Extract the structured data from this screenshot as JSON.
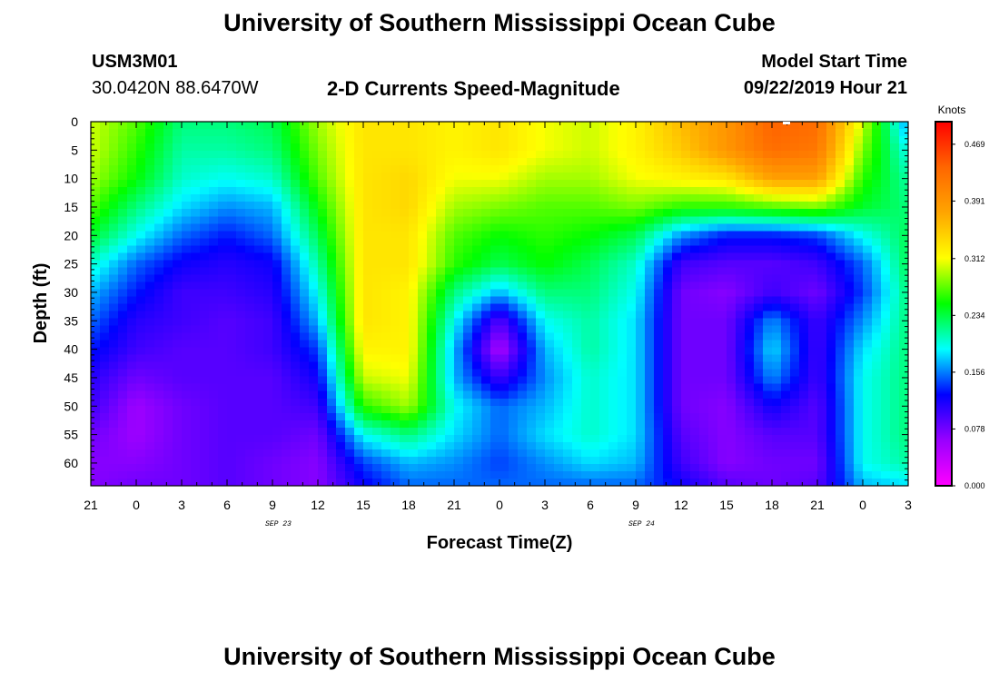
{
  "page": {
    "title_top": "University of Southern Mississippi Ocean Cube",
    "title_bottom": "University of Southern Mississippi Ocean Cube",
    "station_id": "USM3M01",
    "station_coords": "30.0420N 88.6470W",
    "plot_title": "2-D Currents Speed-Magnitude",
    "model_start_label": "Model Start Time",
    "model_start_value": "09/22/2019 Hour 21"
  },
  "colors": {
    "scale": [
      "#ff00ff",
      "#9900ff",
      "#0000ff",
      "#00ffff",
      "#00ff00",
      "#ffff00",
      "#ffa500",
      "#ff6600",
      "#ff0000"
    ]
  },
  "chart_data": {
    "type": "heatmap",
    "xlabel": "Forecast Time(Z)",
    "ylabel": "Depth (ft)",
    "colorbar_label": "Knots",
    "colorbar_ticks": [
      0.0,
      0.078,
      0.156,
      0.234,
      0.312,
      0.391,
      0.469
    ],
    "value_range": [
      0.0,
      0.5
    ],
    "x_tick_labels": [
      "21",
      "0",
      "3",
      "6",
      "9",
      "12",
      "15",
      "18",
      "21",
      "0",
      "3",
      "6",
      "9",
      "12",
      "15",
      "18",
      "21",
      "0",
      "3"
    ],
    "x_hours_from_start": [
      0,
      3,
      6,
      9,
      12,
      15,
      18,
      21,
      24,
      27,
      30,
      33,
      36,
      39,
      42,
      45,
      48,
      51,
      54
    ],
    "date_labels": [
      {
        "text": "SEP 23",
        "at_hour": 15
      },
      {
        "text": "SEP 24",
        "at_hour": 39
      }
    ],
    "y_ticks": [
      0,
      5,
      10,
      15,
      20,
      25,
      30,
      35,
      40,
      45,
      50,
      55,
      60
    ],
    "ylim": [
      0,
      64
    ],
    "x_hours": [
      0,
      3,
      6,
      9,
      12,
      15,
      18,
      21,
      24,
      27,
      30,
      33,
      36,
      39,
      42,
      45,
      48,
      51,
      54
    ],
    "depths_ft": [
      0,
      5,
      10,
      15,
      20,
      25,
      30,
      35,
      40,
      45,
      50,
      55,
      60,
      64
    ],
    "values_knots": [
      [
        0.3,
        0.27,
        0.22,
        0.22,
        0.23,
        0.29,
        0.33,
        0.33,
        0.32,
        0.33,
        0.31,
        0.3,
        0.32,
        0.36,
        0.39,
        0.44,
        0.43,
        0.3,
        0.16
      ],
      [
        0.3,
        0.26,
        0.21,
        0.21,
        0.22,
        0.28,
        0.33,
        0.33,
        0.32,
        0.33,
        0.31,
        0.3,
        0.32,
        0.35,
        0.39,
        0.43,
        0.42,
        0.28,
        0.19
      ],
      [
        0.29,
        0.25,
        0.2,
        0.19,
        0.2,
        0.27,
        0.33,
        0.34,
        0.31,
        0.31,
        0.29,
        0.29,
        0.31,
        0.32,
        0.33,
        0.38,
        0.38,
        0.26,
        0.21
      ],
      [
        0.27,
        0.22,
        0.18,
        0.16,
        0.17,
        0.25,
        0.33,
        0.34,
        0.29,
        0.28,
        0.27,
        0.27,
        0.28,
        0.26,
        0.26,
        0.27,
        0.28,
        0.24,
        0.22
      ],
      [
        0.24,
        0.19,
        0.15,
        0.13,
        0.15,
        0.23,
        0.33,
        0.33,
        0.27,
        0.25,
        0.26,
        0.25,
        0.23,
        0.16,
        0.13,
        0.13,
        0.14,
        0.19,
        0.23
      ],
      [
        0.2,
        0.15,
        0.12,
        0.11,
        0.12,
        0.21,
        0.33,
        0.33,
        0.26,
        0.23,
        0.25,
        0.23,
        0.2,
        0.1,
        0.09,
        0.09,
        0.1,
        0.15,
        0.23
      ],
      [
        0.17,
        0.13,
        0.1,
        0.1,
        0.11,
        0.19,
        0.33,
        0.32,
        0.22,
        0.17,
        0.22,
        0.22,
        0.19,
        0.08,
        0.07,
        0.1,
        0.08,
        0.14,
        0.22
      ],
      [
        0.15,
        0.11,
        0.1,
        0.09,
        0.1,
        0.17,
        0.33,
        0.32,
        0.19,
        0.09,
        0.19,
        0.21,
        0.18,
        0.08,
        0.08,
        0.16,
        0.1,
        0.16,
        0.22
      ],
      [
        0.13,
        0.1,
        0.09,
        0.09,
        0.1,
        0.14,
        0.32,
        0.32,
        0.17,
        0.05,
        0.17,
        0.21,
        0.18,
        0.08,
        0.08,
        0.18,
        0.1,
        0.18,
        0.22
      ],
      [
        0.11,
        0.08,
        0.09,
        0.09,
        0.09,
        0.12,
        0.3,
        0.31,
        0.17,
        0.1,
        0.16,
        0.2,
        0.18,
        0.08,
        0.08,
        0.16,
        0.1,
        0.19,
        0.22
      ],
      [
        0.1,
        0.06,
        0.08,
        0.09,
        0.09,
        0.1,
        0.26,
        0.29,
        0.19,
        0.15,
        0.17,
        0.2,
        0.18,
        0.08,
        0.07,
        0.12,
        0.09,
        0.19,
        0.22
      ],
      [
        0.08,
        0.06,
        0.08,
        0.09,
        0.09,
        0.08,
        0.19,
        0.22,
        0.18,
        0.15,
        0.18,
        0.2,
        0.18,
        0.09,
        0.07,
        0.09,
        0.09,
        0.19,
        0.22
      ],
      [
        0.07,
        0.07,
        0.08,
        0.09,
        0.08,
        0.07,
        0.14,
        0.17,
        0.16,
        0.14,
        0.16,
        0.18,
        0.17,
        0.1,
        0.07,
        0.08,
        0.08,
        0.19,
        0.21
      ],
      [
        0.07,
        0.08,
        0.08,
        0.09,
        0.08,
        0.07,
        0.12,
        0.15,
        0.15,
        0.15,
        0.15,
        0.15,
        0.15,
        0.12,
        0.09,
        0.08,
        0.09,
        0.17,
        0.18
      ]
    ]
  }
}
